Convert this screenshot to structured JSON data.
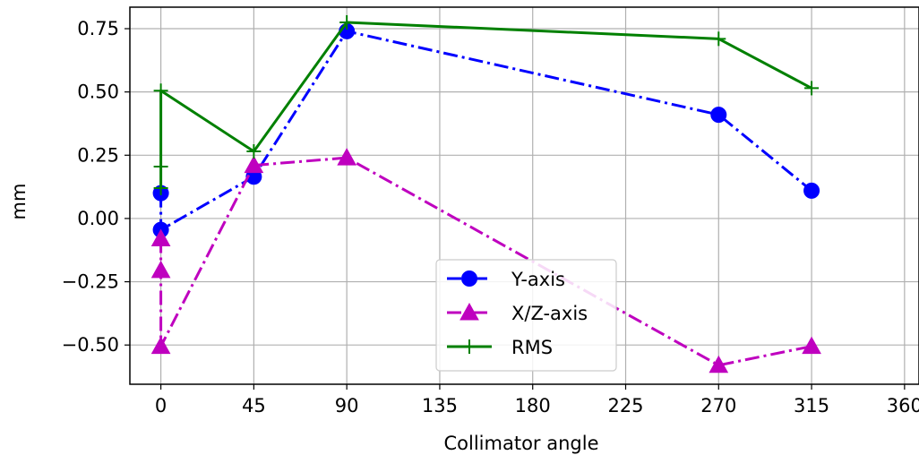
{
  "chart_data": {
    "type": "line",
    "title": "",
    "xlabel": "Collimator angle",
    "ylabel": "mm",
    "xlim": [
      -15,
      367
    ],
    "ylim": [
      -0.655,
      0.835
    ],
    "xticks": [
      0,
      45,
      90,
      135,
      180,
      225,
      270,
      315,
      360
    ],
    "xtick_labels": [
      "0",
      "45",
      "90",
      "135",
      "180",
      "225",
      "270",
      "315",
      "360"
    ],
    "yticks": [
      -0.5,
      -0.25,
      0.0,
      0.25,
      0.5,
      0.75
    ],
    "ytick_labels": [
      "−0.50",
      "−0.25",
      "0.00",
      "0.25",
      "0.50",
      "0.75"
    ],
    "grid": true,
    "legend_position": "lower-center",
    "series": [
      {
        "name": "Y-axis",
        "color": "#0000ff",
        "linestyle": "dashdot",
        "marker": "circle",
        "x": [
          0,
          0,
          45,
          90,
          270,
          315
        ],
        "y": [
          0.1,
          -0.045,
          0.165,
          0.74,
          0.41,
          0.11
        ]
      },
      {
        "name": "X/Z-axis",
        "color": "#bf00bf",
        "linestyle": "dashdot",
        "marker": "triangle",
        "x": [
          0,
          0,
          0,
          45,
          90,
          270,
          315
        ],
        "y": [
          -0.08,
          -0.205,
          -0.505,
          0.21,
          0.24,
          -0.58,
          -0.505
        ]
      },
      {
        "name": "RMS",
        "color": "#008000",
        "linestyle": "solid",
        "marker": "plus",
        "x": [
          0,
          0,
          0,
          45,
          90,
          270,
          315
        ],
        "y": [
          0.12,
          0.205,
          0.505,
          0.265,
          0.775,
          0.71,
          0.515
        ]
      }
    ]
  }
}
